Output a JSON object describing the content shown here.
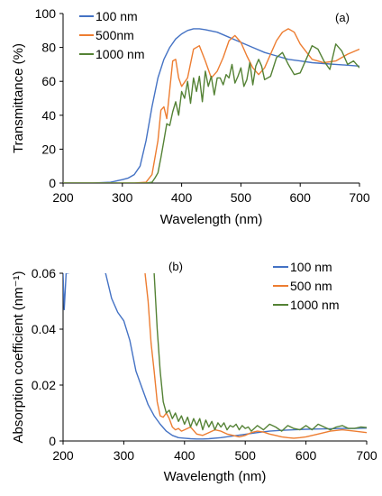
{
  "figure": {
    "background": "#ffffff"
  },
  "chart_data": [
    {
      "type": "line",
      "panel_label": "(a)",
      "xlabel": "Wavelength (nm)",
      "ylabel": "Transmittance (%)",
      "xlim": [
        200,
        700
      ],
      "ylim": [
        0,
        100
      ],
      "xticks": [
        "200",
        "300",
        "400",
        "500",
        "600",
        "700"
      ],
      "yticks": [
        "0",
        "20",
        "40",
        "60",
        "80",
        "100"
      ],
      "grid": false,
      "legend": "top-left",
      "series": [
        {
          "name": "100 nm",
          "color": "#4472C4",
          "x": [
            200,
            250,
            280,
            300,
            310,
            320,
            330,
            340,
            350,
            360,
            370,
            380,
            390,
            400,
            410,
            420,
            430,
            440,
            460,
            480,
            500,
            520,
            540,
            560,
            580,
            600,
            620,
            640,
            660,
            680,
            700
          ],
          "y": [
            0,
            0,
            0.5,
            2,
            3,
            5,
            10,
            25,
            45,
            62,
            73,
            80,
            85,
            88,
            90,
            91,
            91,
            90.5,
            89,
            86,
            83,
            80,
            77,
            75,
            73,
            72,
            71,
            70.5,
            70,
            69.5,
            69
          ]
        },
        {
          "name": "500nm",
          "color": "#ED7D31",
          "x": [
            200,
            280,
            320,
            340,
            350,
            360,
            365,
            370,
            375,
            380,
            385,
            390,
            395,
            400,
            410,
            420,
            430,
            440,
            450,
            460,
            470,
            480,
            490,
            500,
            510,
            520,
            530,
            540,
            550,
            560,
            570,
            580,
            590,
            600,
            620,
            640,
            660,
            680,
            700
          ],
          "y": [
            0,
            0,
            0,
            0.5,
            5,
            25,
            43,
            45,
            38,
            55,
            72,
            73,
            62,
            57,
            62,
            79,
            81,
            72,
            62,
            66,
            74,
            84,
            87,
            83,
            75,
            68,
            64,
            68,
            76,
            84,
            89,
            91,
            89,
            82,
            73,
            71,
            72,
            76,
            79
          ]
        },
        {
          "name": "1000 nm",
          "color": "#548235",
          "x": [
            200,
            300,
            340,
            350,
            355,
            360,
            365,
            370,
            375,
            380,
            385,
            390,
            395,
            400,
            405,
            410,
            415,
            420,
            425,
            430,
            435,
            440,
            445,
            450,
            455,
            460,
            465,
            470,
            475,
            480,
            485,
            490,
            495,
            500,
            505,
            510,
            515,
            520,
            525,
            530,
            535,
            540,
            550,
            560,
            570,
            580,
            590,
            600,
            610,
            620,
            630,
            640,
            650,
            660,
            670,
            680,
            690,
            700
          ],
          "y": [
            0,
            0,
            0,
            0.5,
            3,
            6,
            15,
            25,
            35,
            34,
            42,
            48,
            40,
            54,
            50,
            60,
            47,
            62,
            54,
            63,
            48,
            66,
            57,
            63,
            52,
            62,
            62,
            58,
            64,
            62,
            70,
            59,
            63,
            68,
            57,
            61,
            71,
            58,
            69,
            73,
            69,
            61,
            63,
            74,
            77,
            70,
            64,
            65,
            73,
            81,
            79,
            72,
            67,
            82,
            78,
            70,
            72,
            68
          ]
        }
      ]
    },
    {
      "type": "line",
      "panel_label": "(b)",
      "xlabel": "Wavelength (nm)",
      "ylabel": "Absorption coefficient (nm⁻¹)",
      "xlim": [
        200,
        700
      ],
      "ylim": [
        0,
        0.06
      ],
      "xticks": [
        "200",
        "300",
        "400",
        "500",
        "600",
        "700"
      ],
      "yticks": [
        "0",
        "0.02",
        "0.04",
        "0.06"
      ],
      "grid": false,
      "legend": "top-right",
      "series": [
        {
          "name": "100 nm",
          "color": "#4472C4",
          "x": [
            200,
            202,
            205,
            260,
            270,
            280,
            290,
            300,
            310,
            320,
            330,
            340,
            350,
            360,
            370,
            380,
            390,
            400,
            410,
            420,
            430,
            440,
            460,
            480,
            500,
            520,
            540,
            560,
            580,
            600,
            620,
            640,
            660,
            680,
            700
          ],
          "y": [
            0.06,
            0.047,
            0.06,
            0.062,
            0.06,
            0.051,
            0.046,
            0.043,
            0.036,
            0.025,
            0.019,
            0.013,
            0.009,
            0.006,
            0.0035,
            0.002,
            0.0012,
            0.001,
            0.0008,
            0.0007,
            0.0007,
            0.0008,
            0.0012,
            0.0018,
            0.0024,
            0.003,
            0.0035,
            0.0038,
            0.004,
            0.0042,
            0.0043,
            0.0044,
            0.0045,
            0.0045,
            0.0046
          ]
        },
        {
          "name": "500 nm",
          "color": "#ED7D31",
          "x": [
            335,
            340,
            345,
            350,
            355,
            360,
            365,
            370,
            375,
            380,
            385,
            390,
            395,
            400,
            410,
            420,
            430,
            440,
            450,
            460,
            470,
            480,
            490,
            500,
            510,
            520,
            530,
            540,
            550,
            560,
            570,
            580,
            590,
            600,
            620,
            640,
            660,
            680,
            700
          ],
          "y": [
            0.06,
            0.05,
            0.035,
            0.025,
            0.014,
            0.009,
            0.0085,
            0.01,
            0.008,
            0.005,
            0.004,
            0.0045,
            0.0035,
            0.004,
            0.005,
            0.0025,
            0.002,
            0.003,
            0.004,
            0.0035,
            0.0025,
            0.002,
            0.0015,
            0.002,
            0.003,
            0.0035,
            0.0032,
            0.0025,
            0.002,
            0.0015,
            0.0012,
            0.001,
            0.0012,
            0.0015,
            0.0025,
            0.0035,
            0.004,
            0.0035,
            0.003
          ]
        },
        {
          "name": "1000 nm",
          "color": "#548235",
          "x": [
            350,
            355,
            360,
            365,
            370,
            375,
            380,
            385,
            390,
            395,
            400,
            405,
            410,
            415,
            420,
            425,
            430,
            435,
            440,
            445,
            450,
            455,
            460,
            465,
            470,
            475,
            480,
            485,
            490,
            495,
            500,
            505,
            510,
            520,
            530,
            540,
            550,
            560,
            570,
            580,
            590,
            600,
            610,
            620,
            630,
            640,
            650,
            660,
            670,
            680,
            690,
            700
          ],
          "y": [
            0.06,
            0.04,
            0.025,
            0.014,
            0.01,
            0.011,
            0.008,
            0.01,
            0.007,
            0.009,
            0.006,
            0.0085,
            0.005,
            0.008,
            0.0055,
            0.008,
            0.004,
            0.0075,
            0.005,
            0.007,
            0.004,
            0.0065,
            0.005,
            0.0065,
            0.004,
            0.0055,
            0.005,
            0.006,
            0.004,
            0.0055,
            0.0045,
            0.005,
            0.0035,
            0.0055,
            0.004,
            0.006,
            0.005,
            0.0035,
            0.0055,
            0.0045,
            0.004,
            0.0055,
            0.004,
            0.006,
            0.005,
            0.004,
            0.005,
            0.0055,
            0.0045,
            0.0045,
            0.005,
            0.0048
          ]
        }
      ]
    }
  ]
}
